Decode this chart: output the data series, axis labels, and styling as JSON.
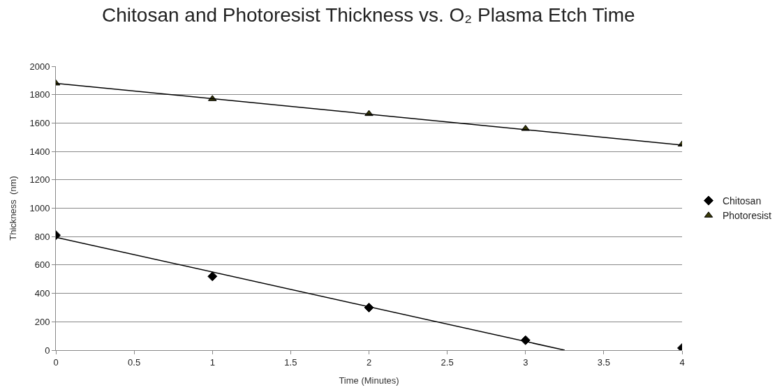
{
  "chart_data": {
    "type": "scatter",
    "title": "Chitosan and Photoresist Thickness vs. O₂ Plasma Etch Time",
    "xlabel": "Time (Minutes)",
    "ylabel": "Thickness  (nm)",
    "x": [
      0,
      1,
      2,
      3,
      4
    ],
    "series": [
      {
        "name": "Chitosan",
        "color": "#000000",
        "marker": "diamond",
        "values": [
          810,
          520,
          300,
          70,
          15
        ]
      },
      {
        "name": "Photoresist",
        "color": "#3a3a08",
        "marker": "triangle",
        "values": [
          1880,
          1770,
          1665,
          1560,
          1450
        ]
      },
      {
        "type": "line",
        "color": "#000000",
        "marker": "none",
        "x": [
          0,
          3.25
        ],
        "values": [
          795,
          0
        ]
      },
      {
        "type": "line",
        "color": "#000000",
        "marker": "none",
        "x": [
          0,
          4
        ],
        "values": [
          1880,
          1445
        ]
      }
    ],
    "xlim": [
      0,
      4
    ],
    "xticks": [
      0,
      0.5,
      1,
      1.5,
      2,
      2.5,
      3,
      3.5,
      4
    ],
    "ylim": [
      0,
      2000
    ],
    "yticks": [
      0,
      200,
      400,
      600,
      800,
      1000,
      1200,
      1400,
      1600,
      1800,
      2000
    ],
    "grid": "y",
    "legend": "right"
  }
}
